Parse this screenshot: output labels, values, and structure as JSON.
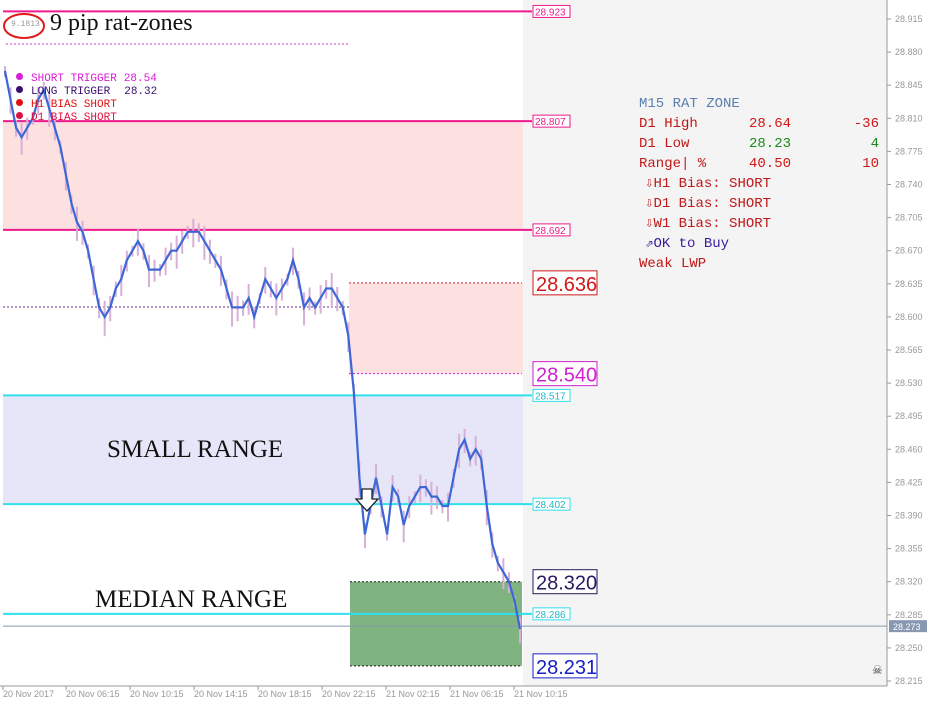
{
  "header": {
    "symbol_badge": "9.1813",
    "title": "9 pip rat-zones"
  },
  "top_info": {
    "items": [
      {
        "label": "SHORT TRIGGER",
        "value": "28.54",
        "color": "#d81bd8"
      },
      {
        "label": "LONG TRIGGER",
        "value": "28.32",
        "color": "#3a0d6e"
      },
      {
        "label": "H1 BIAS SHORT",
        "value": "",
        "color": "#e01010"
      },
      {
        "label": "D1 BIAS SHORT",
        "value": "",
        "color": "#e01040"
      }
    ]
  },
  "zones": {
    "small_range_label": "SMALL RANGE",
    "median_range_label": "MEDIAN RANGE"
  },
  "levels": {
    "top": "28.923",
    "upper1": "28.807",
    "upper2": "28.692",
    "short_trigger_box": "28.636",
    "short_trigger_low": "28.540",
    "cyan_upper": "28.517",
    "cyan_mid": "28.402",
    "long_trigger_box": "28.320",
    "cyan_low": "28.286",
    "bottom_box": "28.231",
    "current_price": "28.273"
  },
  "rat_zone_panel": {
    "title": "M15 RAT ZONE",
    "rows": [
      {
        "label": "D1 High",
        "value": "28.64",
        "delta": "-36",
        "color": "#d01818"
      },
      {
        "label": "D1 Low",
        "value": "28.23",
        "delta": "4",
        "color": "#1a8a1a"
      },
      {
        "label": "Range| %",
        "value": "40.50",
        "delta": "10",
        "color": "#d01818"
      }
    ],
    "bias": [
      {
        "arrow": "⇩",
        "text": "H1 Bias: SHORT"
      },
      {
        "arrow": "⇩",
        "text": "D1 Bias: SHORT"
      },
      {
        "arrow": "⇩",
        "text": "W1 Bias: SHORT"
      }
    ],
    "ok_arrow": "⇗",
    "ok_text": "OK to Buy",
    "weak_text": "Weak LWP"
  },
  "colors": {
    "magenta": "#ee1b8e",
    "cyan": "#2fe0ee",
    "price_line": "#3e67d6",
    "pink_zone": "#fde0e0",
    "lavender_zone": "#e6e6f8",
    "green_box": "#7fb37f"
  },
  "chart_data": {
    "type": "line",
    "title": "9 pip rat-zones",
    "xlabel": "",
    "ylabel": "",
    "x_ticks": [
      "20 Nov 2017",
      "20 Nov 06:15",
      "20 Nov 10:15",
      "20 Nov 14:15",
      "20 Nov 18:15",
      "20 Nov 22:15",
      "21 Nov 02:15",
      "21 Nov 06:15",
      "21 Nov 10:15"
    ],
    "y_ticks": [
      "28.915",
      "28.880",
      "28.845",
      "28.810",
      "28.775",
      "28.740",
      "28.705",
      "28.670",
      "28.635",
      "28.600",
      "28.565",
      "28.530",
      "28.495",
      "28.460",
      "28.425",
      "28.390",
      "28.355",
      "28.320",
      "28.285",
      "28.250",
      "28.215"
    ],
    "ylim": [
      28.215,
      28.92
    ],
    "series": [
      {
        "name": "",
        "values": [
          28.86,
          28.83,
          28.8,
          28.79,
          28.8,
          28.81,
          28.83,
          28.84,
          28.82,
          28.8,
          28.78,
          28.75,
          28.72,
          28.7,
          28.69,
          28.67,
          28.64,
          28.61,
          28.6,
          28.61,
          28.63,
          28.64,
          28.66,
          28.67,
          28.68,
          28.67,
          28.65,
          28.65,
          28.65,
          28.66,
          28.67,
          28.67,
          28.68,
          28.69,
          28.69,
          28.69,
          28.68,
          28.67,
          28.66,
          28.65,
          28.63,
          28.61,
          28.61,
          28.61,
          28.62,
          28.6,
          28.62,
          28.64,
          28.63,
          28.62,
          28.63,
          28.64,
          28.66,
          28.64,
          28.61,
          28.62,
          28.61,
          28.62,
          28.63,
          28.63,
          28.62,
          28.61,
          28.58,
          28.52,
          28.43,
          28.37,
          28.4,
          28.43,
          28.4,
          28.37,
          28.42,
          28.41,
          28.38,
          28.4,
          28.41,
          28.42,
          28.42,
          28.41,
          28.41,
          28.4,
          28.4,
          28.43,
          28.46,
          28.47,
          28.45,
          28.46,
          28.45,
          28.4,
          28.36,
          28.34,
          28.33,
          28.32,
          28.3,
          28.27
        ]
      }
    ],
    "grid": false,
    "legend": "none"
  }
}
